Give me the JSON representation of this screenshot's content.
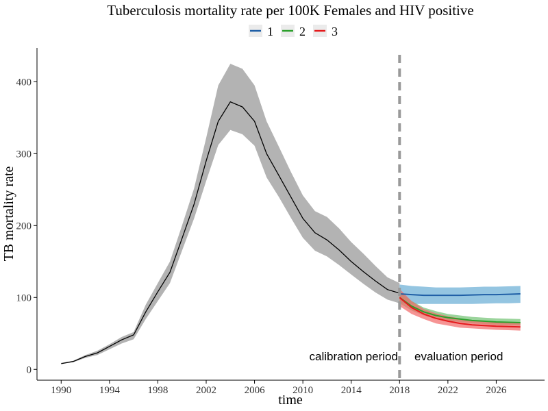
{
  "chart_data": {
    "type": "line",
    "title": "Tuberculosis mortality rate per 100K Females and HIV positive",
    "xlabel": "time",
    "ylabel": "TB mortality rate",
    "xlim": [
      1988,
      2030
    ],
    "ylim": [
      -15,
      447
    ],
    "xticks": [
      1990,
      1994,
      1998,
      2002,
      2006,
      2010,
      2014,
      2018,
      2022,
      2026
    ],
    "yticks": [
      0,
      100,
      200,
      300,
      400
    ],
    "grid": false,
    "legend_position": "top",
    "vline": {
      "x": 2018,
      "color": "#999999",
      "style": "dashed"
    },
    "annotations": [
      {
        "text": "calibration period",
        "x": 2014.2,
        "y": 10
      },
      {
        "text": "evaluation period",
        "x": 2022.9,
        "y": 10
      }
    ],
    "calibration": {
      "color": "#000000",
      "band_color": "#b3b3b3",
      "x": [
        1990,
        1991,
        1992,
        1993,
        1994,
        1995,
        1996,
        1997,
        1998,
        1999,
        2000,
        2001,
        2002,
        2003,
        2004,
        2005,
        2006,
        2007,
        2008,
        2009,
        2010,
        2011,
        2012,
        2013,
        2014,
        2015,
        2016,
        2017,
        2018
      ],
      "mid": [
        8,
        11,
        18,
        23,
        32,
        41,
        48,
        80,
        108,
        135,
        182,
        230,
        290,
        345,
        372,
        365,
        345,
        300,
        270,
        240,
        210,
        190,
        180,
        166,
        150,
        136,
        123,
        111,
        106
      ],
      "low": [
        8,
        10,
        16,
        20,
        28,
        36,
        42,
        70,
        95,
        120,
        165,
        210,
        262,
        312,
        333,
        327,
        311,
        267,
        240,
        211,
        183,
        165,
        157,
        145,
        132,
        119,
        107,
        97,
        92
      ],
      "high": [
        9,
        12,
        20,
        26,
        35,
        45,
        52,
        90,
        120,
        150,
        200,
        252,
        322,
        395,
        425,
        418,
        395,
        345,
        310,
        275,
        242,
        220,
        212,
        196,
        177,
        161,
        144,
        128,
        120
      ]
    },
    "series": [
      {
        "name": "1",
        "color": "#1f5fa6",
        "band_color": "#6baed6",
        "x": [
          2018,
          2019,
          2020,
          2021,
          2022,
          2023,
          2024,
          2025,
          2026,
          2027,
          2028
        ],
        "values": [
          105,
          104,
          103,
          103,
          103,
          103,
          103.5,
          104,
          104,
          104.5,
          105
        ],
        "low": [
          92,
          91,
          91,
          91,
          91,
          91,
          91,
          91.5,
          92,
          92,
          92.5
        ],
        "high": [
          118,
          116,
          115,
          114,
          114,
          114,
          114.5,
          115,
          115,
          115.5,
          116
        ]
      },
      {
        "name": "2",
        "color": "#2ca02c",
        "band_color": "#74c476",
        "x": [
          2018,
          2019,
          2020,
          2021,
          2022,
          2023,
          2024,
          2025,
          2026,
          2027,
          2028
        ],
        "values": [
          100,
          88,
          80,
          75,
          72,
          70,
          68,
          67,
          66,
          65.5,
          65
        ],
        "low": [
          92,
          82,
          75,
          70,
          67,
          66,
          64,
          63,
          62,
          61.5,
          61
        ],
        "high": [
          108,
          95,
          86,
          81,
          77,
          75,
          73,
          72,
          71,
          70.5,
          70
        ]
      },
      {
        "name": "3",
        "color": "#e41a1c",
        "band_color": "#f36b6b",
        "x": [
          2018,
          2019,
          2020,
          2021,
          2022,
          2023,
          2024,
          2025,
          2026,
          2027,
          2028
        ],
        "values": [
          100,
          86,
          77,
          71,
          67,
          64,
          62,
          61,
          60,
          59.5,
          59
        ],
        "low": [
          88,
          77,
          70,
          64,
          61,
          58,
          57,
          56,
          55,
          54.5,
          54
        ],
        "high": [
          112,
          95,
          84,
          78,
          74,
          71,
          68,
          67,
          66,
          65.5,
          65
        ]
      }
    ]
  }
}
